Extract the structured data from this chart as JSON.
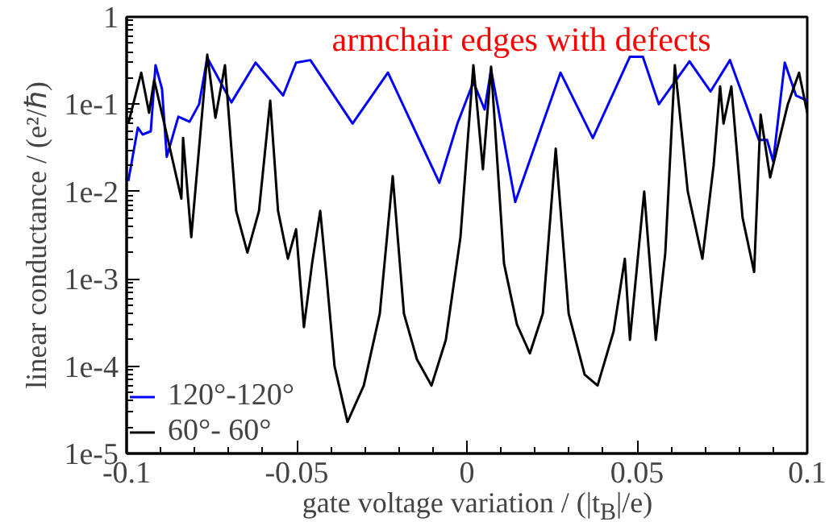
{
  "chart_data": {
    "type": "line",
    "title": "armchair edges with defects",
    "xlabel": "gate voltage variation / (|t$_{B}$|/e)",
    "ylabel": "linear conductance / (e²/ℏ)",
    "log": "y",
    "xlim": [
      -0.1,
      0.1
    ],
    "xticks": [
      -0.1,
      -0.05,
      0,
      0.05,
      0.1
    ],
    "ylim": [
      1e-05,
      1
    ],
    "yticks": [
      {
        "value": 1e-05,
        "label": "1e-5"
      },
      {
        "value": 0.0001,
        "label": "1e-4"
      },
      {
        "value": 0.001,
        "label": "1e-3"
      },
      {
        "value": 0.01,
        "label": "1e-2"
      },
      {
        "value": 0.1,
        "label": "1e-1"
      },
      1
    ],
    "grid": false,
    "legend": "bottom left",
    "line_style": "solid",
    "marker": "none",
    "series": [
      {
        "name": "120°-120°",
        "color": "#0000ff",
        "x": [
          -0.0995,
          -0.0967,
          -0.0953,
          -0.0929,
          -0.0915,
          -0.0896,
          -0.0882,
          -0.0848,
          -0.0815,
          -0.0787,
          -0.0763,
          -0.0692,
          -0.0621,
          -0.054,
          -0.0502,
          -0.046,
          -0.0336,
          -0.0232,
          -0.0081,
          -0.0028,
          0.0019,
          0.0052,
          0.0071,
          0.0142,
          0.0275,
          0.037,
          0.0479,
          0.0517,
          0.0564,
          0.0654,
          0.0716,
          0.0773,
          0.0858,
          0.0882,
          0.09,
          0.0934,
          0.0967,
          0.1
        ],
        "values": [
          0.0132,
          0.054,
          0.045,
          0.049,
          0.28,
          0.15,
          0.025,
          0.072,
          0.063,
          0.1,
          0.34,
          0.105,
          0.3,
          0.126,
          0.3,
          0.32,
          0.06,
          0.23,
          0.0126,
          0.06,
          0.18,
          0.087,
          0.25,
          0.0076,
          0.23,
          0.041,
          0.35,
          0.35,
          0.1,
          0.31,
          0.14,
          0.32,
          0.039,
          0.039,
          0.022,
          0.3,
          0.126,
          0.11
        ]
      },
      {
        "name": "60°- 60°",
        "color": "#000000",
        "x": [
          -0.0995,
          -0.0957,
          -0.0934,
          -0.0919,
          -0.0882,
          -0.0839,
          -0.0834,
          -0.081,
          -0.0763,
          -0.0739,
          -0.0711,
          -0.0678,
          -0.0645,
          -0.0611,
          -0.0578,
          -0.0555,
          -0.0526,
          -0.0502,
          -0.0479,
          -0.0455,
          -0.0431,
          -0.0412,
          -0.0389,
          -0.0351,
          -0.0303,
          -0.0256,
          -0.0218,
          -0.0185,
          -0.0147,
          -0.0104,
          -0.0062,
          -0.0019,
          0.0019,
          0.0047,
          0.0071,
          0.0109,
          0.0147,
          0.0185,
          0.0223,
          0.0261,
          0.0299,
          0.0346,
          0.0384,
          0.0431,
          0.0464,
          0.0479,
          0.0521,
          0.0555,
          0.0583,
          0.0611,
          0.0649,
          0.0692,
          0.0725,
          0.0744,
          0.0754,
          0.0777,
          0.081,
          0.0844,
          0.0863,
          0.0891,
          0.0943,
          0.0976,
          0.1
        ],
        "values": [
          0.06,
          0.23,
          0.08,
          0.19,
          0.045,
          0.0083,
          0.041,
          0.003,
          0.37,
          0.07,
          0.28,
          0.006,
          0.002,
          0.006,
          0.11,
          0.006,
          0.0017,
          0.0037,
          0.00028,
          0.0015,
          0.006,
          0.001,
          0.0001,
          2.3e-05,
          6e-05,
          0.0004,
          0.015,
          0.0004,
          0.00012,
          6e-05,
          0.0002,
          0.003,
          0.28,
          0.018,
          0.27,
          0.0015,
          0.0003,
          0.00014,
          0.0004,
          0.031,
          0.0004,
          8e-05,
          6e-05,
          0.00025,
          0.0017,
          0.0002,
          0.01,
          0.0002,
          0.002,
          0.28,
          0.01,
          0.0017,
          0.02,
          0.16,
          0.06,
          0.16,
          0.005,
          0.0012,
          0.076,
          0.0145,
          0.1,
          0.23,
          0.08
        ]
      }
    ]
  }
}
